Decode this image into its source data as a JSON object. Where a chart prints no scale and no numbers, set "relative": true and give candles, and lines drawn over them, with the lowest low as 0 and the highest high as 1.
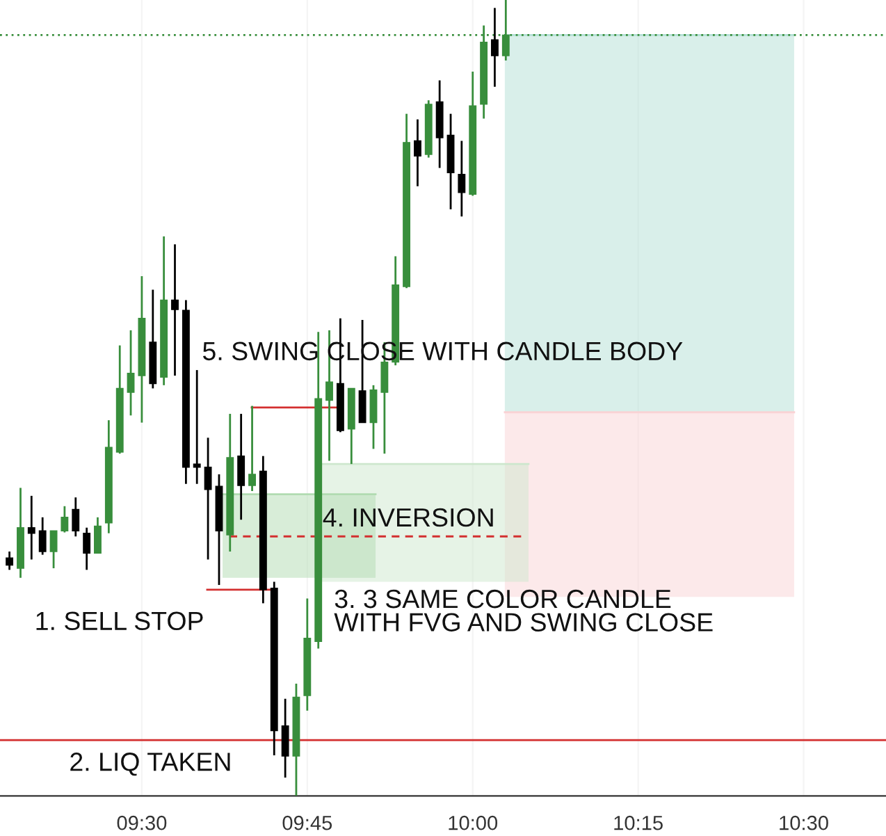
{
  "chart_data": {
    "type": "candlestick",
    "relative": true,
    "tick_labels": "x",
    "grid": "x",
    "legend": false,
    "xlim": [
      9.2857,
      10.6245
    ],
    "xticks": [
      {
        "value": 9.5,
        "label": "09:30"
      },
      {
        "value": 9.75,
        "label": "09:45"
      },
      {
        "value": 10,
        "label": "10:00"
      },
      {
        "value": 10.25,
        "label": "10:15"
      },
      {
        "value": 10.5,
        "label": "10:30"
      }
    ],
    "x": [
      9.3,
      9.3167,
      9.3333,
      9.35,
      9.3667,
      9.3833,
      9.4,
      9.4167,
      9.4333,
      9.45,
      9.4667,
      9.4833,
      9.5,
      9.5167,
      9.5333,
      9.55,
      9.5667,
      9.5833,
      9.6,
      9.6167,
      9.6333,
      9.65,
      9.6667,
      9.6833,
      9.7,
      9.7167,
      9.7333,
      9.75,
      9.7667,
      9.7833,
      9.8,
      9.8167,
      9.8333,
      9.85,
      9.8667,
      9.8833,
      9.9,
      9.9167,
      9.9333,
      9.95,
      9.9667,
      9.9833,
      10.0,
      10.0167,
      10.0333,
      10.05
    ],
    "ohlc": [
      [
        0.299,
        0.307,
        0.284,
        0.29
      ],
      [
        0.286,
        0.387,
        0.274,
        0.337
      ],
      [
        0.337,
        0.377,
        0.297,
        0.33
      ],
      [
        0.333,
        0.35,
        0.303,
        0.307
      ],
      [
        0.307,
        0.333,
        0.286,
        0.333
      ],
      [
        0.333,
        0.364,
        0.331,
        0.35
      ],
      [
        0.36,
        0.375,
        0.326,
        0.333
      ],
      [
        0.33,
        0.337,
        0.284,
        0.305
      ],
      [
        0.305,
        0.35,
        0.305,
        0.339
      ],
      [
        0.343,
        0.472,
        0.33,
        0.438
      ],
      [
        0.432,
        0.566,
        0.43,
        0.512
      ],
      [
        0.507,
        0.585,
        0.478,
        0.531
      ],
      [
        0.528,
        0.653,
        0.469,
        0.6
      ],
      [
        0.57,
        0.636,
        0.512,
        0.518
      ],
      [
        0.526,
        0.703,
        0.516,
        0.623
      ],
      [
        0.623,
        0.693,
        0.528,
        0.611
      ],
      [
        0.61,
        0.623,
        0.392,
        0.413
      ],
      [
        0.417,
        0.535,
        0.392,
        0.413
      ],
      [
        0.413,
        0.45,
        0.297,
        0.385
      ],
      [
        0.389,
        0.404,
        0.265,
        0.333
      ],
      [
        0.328,
        0.48,
        0.307,
        0.425
      ],
      [
        0.427,
        0.48,
        0.347,
        0.39
      ],
      [
        0.39,
        0.49,
        0.383,
        0.404
      ],
      [
        0.408,
        0.427,
        0.242,
        0.259
      ],
      [
        0.261,
        0.269,
        0.051,
        0.082
      ],
      [
        0.088,
        0.122,
        0.023,
        0.05
      ],
      [
        0.05,
        0.141,
        0.0,
        0.124
      ],
      [
        0.126,
        0.248,
        0.107,
        0.198
      ],
      [
        0.194,
        0.583,
        0.185,
        0.499
      ],
      [
        0.497,
        0.585,
        0.421,
        0.52
      ],
      [
        0.518,
        0.6,
        0.457,
        0.459
      ],
      [
        0.461,
        0.512,
        0.417,
        0.512
      ],
      [
        0.509,
        0.598,
        0.469,
        0.469
      ],
      [
        0.469,
        0.516,
        0.436,
        0.51
      ],
      [
        0.507,
        0.57,
        0.43,
        0.545
      ],
      [
        0.545,
        0.678,
        0.541,
        0.642
      ],
      [
        0.64,
        0.857,
        0.638,
        0.821
      ],
      [
        0.823,
        0.85,
        0.766,
        0.804
      ],
      [
        0.806,
        0.874,
        0.802,
        0.869
      ],
      [
        0.872,
        0.899,
        0.789,
        0.827
      ],
      [
        0.83,
        0.857,
        0.737,
        0.783
      ],
      [
        0.781,
        0.823,
        0.728,
        0.758
      ],
      [
        0.756,
        0.91,
        0.754,
        0.867
      ],
      [
        0.869,
        0.968,
        0.851,
        0.947
      ],
      [
        0.95,
        0.99,
        0.891,
        0.93
      ],
      [
        0.93,
        1.0,
        0.924,
        0.956
      ]
    ],
    "colors": [
      "#000000",
      "#388e3c",
      "#000000",
      "#000000",
      "#388e3c",
      "#388e3c",
      "#000000",
      "#000000",
      "#388e3c",
      "#388e3c",
      "#388e3c",
      "#388e3c",
      "#388e3c",
      "#000000",
      "#388e3c",
      "#000000",
      "#000000",
      "#000000",
      "#000000",
      "#000000",
      "#388e3c",
      "#000000",
      "#388e3c",
      "#000000",
      "#000000",
      "#000000",
      "#388e3c",
      "#388e3c",
      "#388e3c",
      "#388e3c",
      "#000000",
      "#388e3c",
      "#000000",
      "#388e3c",
      "#388e3c",
      "#388e3c",
      "#388e3c",
      "#000000",
      "#388e3c",
      "#000000",
      "#000000",
      "#000000",
      "#388e3c",
      "#388e3c",
      "#000000",
      "#388e3c"
    ],
    "series": [
      {
        "type": "line",
        "color": "#b3dfd5",
        "x": [
          10.0485,
          10.4857
        ],
        "values": [
          0.956,
          0.956
        ],
        "lower": [
          0.482,
          0.482
        ],
        "upper": [
          0.956,
          0.956
        ]
      },
      {
        "type": "line",
        "color": "#f9d3d5",
        "x": [
          10.0485,
          10.4857
        ],
        "values": [
          0.482,
          0.482
        ],
        "lower": [
          0.25,
          0.25
        ],
        "upper": [
          0.482,
          0.482
        ]
      },
      {
        "type": "line",
        "color": "#cde7cd",
        "x": [
          9.769,
          10.0843
        ],
        "values": [
          0.417,
          0.417
        ],
        "lower": [
          0.269,
          0.269
        ],
        "upper": [
          0.417,
          0.417
        ]
      },
      {
        "type": "line",
        "color": "#b1dbb1",
        "x": [
          9.622,
          9.8532
        ],
        "values": [
          0.379,
          0.379
        ],
        "lower": [
          0.274,
          0.274
        ],
        "upper": [
          0.379,
          0.379
        ]
      },
      {
        "type": "line",
        "color": "#d32f2f",
        "line_style": "dashed",
        "x": [
          9.6324,
          10.08
        ],
        "values": [
          0.326,
          0.326
        ]
      },
      {
        "type": "line",
        "color": "#d32f2f",
        "line_style": "solid",
        "x": [
          9.666,
          9.8005
        ],
        "values": [
          0.488,
          0.488
        ]
      },
      {
        "type": "line",
        "color": "#d32f2f",
        "line_style": "solid",
        "x": [
          9.5988,
          9.6997
        ],
        "values": [
          0.259,
          0.259
        ]
      }
    ],
    "ref_lines": [
      {
        "axis": "y",
        "value": 0.07,
        "color": "#d32f2f",
        "line_style": "solid"
      },
      {
        "axis": "y",
        "value": 0.956,
        "color": "#388e3c",
        "line_style": "dotted"
      }
    ],
    "annotations": [
      "1. SELL STOP",
      "2. LIQ TAKEN",
      "3. 3 SAME COLOR CANDLE\nWITH FVG AND SWING CLOSE",
      "4. INVERSION",
      "5. SWING CLOSE WITH CANDLE BODY"
    ]
  }
}
